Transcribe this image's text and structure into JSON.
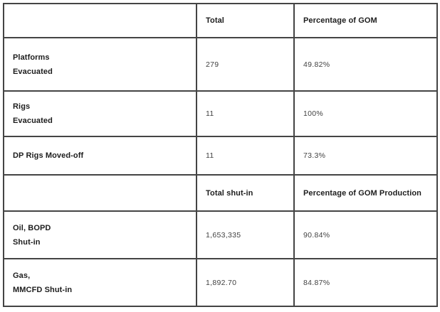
{
  "table": {
    "border_color": "#444444",
    "text_color": "#1d1d1d",
    "value_color": "#414141",
    "section1": {
      "header": {
        "total": "Total",
        "percentage": "Percentage of GOM"
      },
      "rows": [
        {
          "label1": "Platforms",
          "label2": "Evacuated",
          "total": "279",
          "percentage": "49.82%"
        },
        {
          "label1": "Rigs",
          "label2": "Evacuated",
          "total": "11",
          "percentage": "100%"
        },
        {
          "label1": "DP Rigs Moved-off",
          "label2": "",
          "total": "11",
          "percentage": "73.3%"
        }
      ]
    },
    "section2": {
      "header": {
        "total": "Total shut-in",
        "percentage": "Percentage of GOM Production"
      },
      "rows": [
        {
          "label1": "Oil, BOPD",
          "label2": "Shut-in",
          "total": "1,653,335",
          "percentage": "90.84%"
        },
        {
          "label1": "Gas,",
          "label2": "MMCFD Shut-in",
          "total": "1,892.70",
          "percentage": "84.87%"
        }
      ]
    }
  }
}
